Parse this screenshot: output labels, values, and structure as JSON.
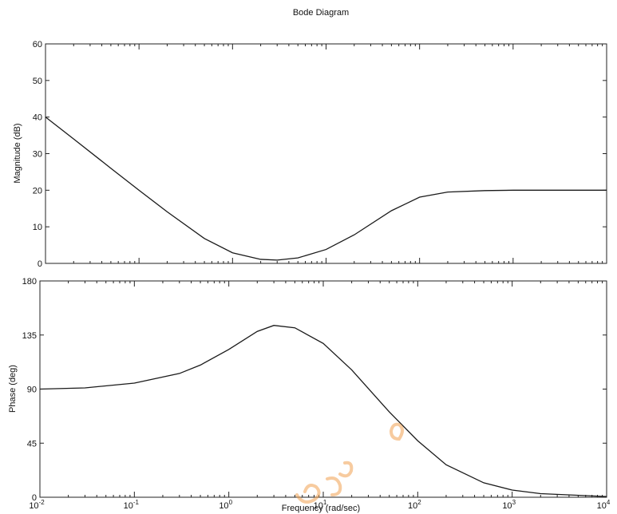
{
  "chart_data": {
    "type": "line",
    "title": "Bode Diagram",
    "xlabel": "Frequency (rad/sec)",
    "x_scale": "log",
    "xlim": [
      0.01,
      10000
    ],
    "x_tick_values": [
      0.01,
      0.1,
      1,
      10,
      100,
      1000,
      10000
    ],
    "x_tick_labels": [
      {
        "base": "10",
        "exp": "-2"
      },
      {
        "base": "10",
        "exp": "-1"
      },
      {
        "base": "10",
        "exp": "0"
      },
      {
        "base": "10",
        "exp": "1"
      },
      {
        "base": "10",
        "exp": "2"
      },
      {
        "base": "10",
        "exp": "3"
      },
      {
        "base": "10",
        "exp": "4"
      }
    ],
    "grid": false,
    "panels": [
      {
        "name": "magnitude",
        "ylabel": "Magnitude (dB)",
        "ylim": [
          0,
          60
        ],
        "y_ticks": [
          0,
          10,
          20,
          30,
          40,
          50,
          60
        ],
        "series": [
          {
            "x": [
              0.01,
              0.02,
              0.05,
              0.1,
              0.2,
              0.5,
              1,
              2,
              3,
              5,
              10,
              20,
              50,
              100,
              200,
              500,
              1000,
              10000
            ],
            "y": [
              40,
              34,
              26,
              20,
              14.1,
              6.8,
              2.9,
              1.1,
              0.9,
              1.5,
              3.8,
              7.8,
              14.4,
              18.1,
              19.5,
              19.9,
              20,
              20
            ]
          }
        ]
      },
      {
        "name": "phase",
        "ylabel": "Phase (deg)",
        "ylim": [
          0,
          180
        ],
        "y_ticks": [
          0,
          45,
          90,
          135,
          180
        ],
        "series": [
          {
            "x": [
              0.01,
              0.03,
              0.1,
              0.3,
              0.5,
              1,
              2,
              3,
              5,
              10,
              20,
              50,
              100,
              200,
              500,
              1000,
              2000,
              10000
            ],
            "y": [
              90,
              91,
              95,
              103,
              110,
              123,
              138,
              143,
              141,
              128,
              106,
              71,
              47,
              27,
              12,
              6,
              3,
              0.6
            ]
          }
        ]
      }
    ]
  }
}
